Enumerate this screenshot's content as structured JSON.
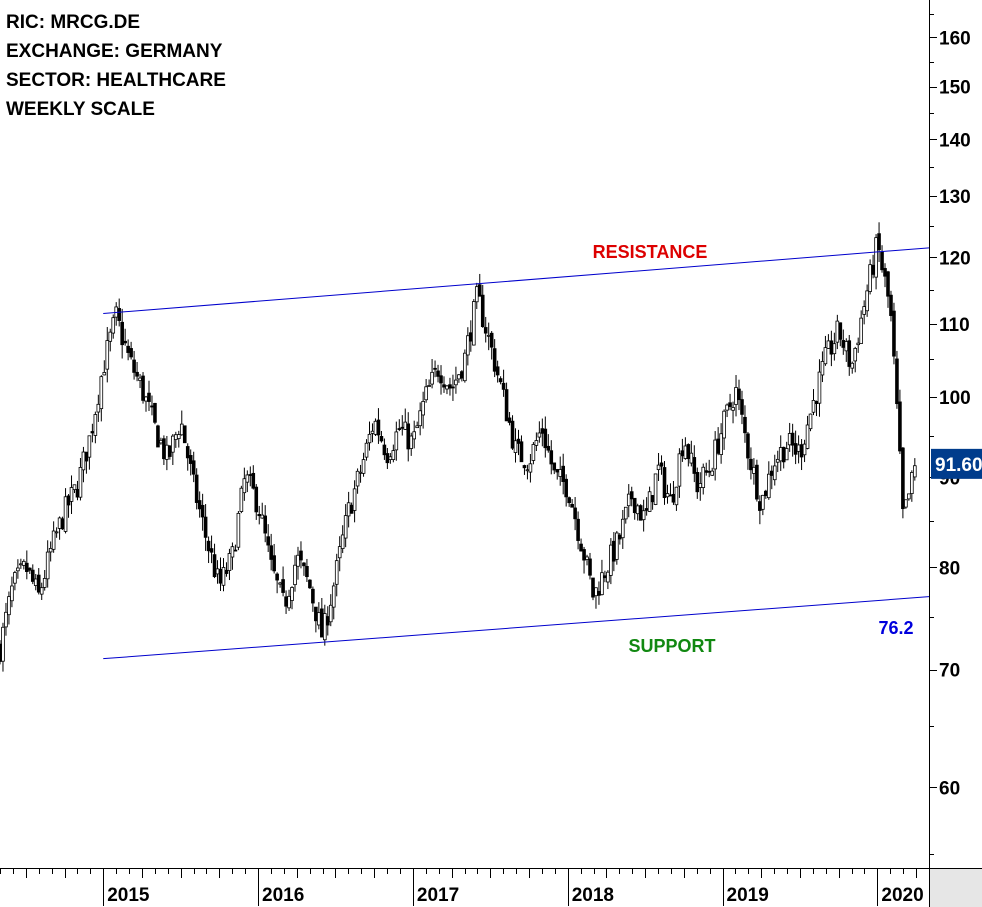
{
  "header": {
    "ric": "RIC: MRCG.DE",
    "exchange": "EXCHANGE: GERMANY",
    "sector": "SECTOR: HEALTHCARE",
    "scale": "WEEKLY SCALE"
  },
  "colors": {
    "trendline": "#0000cc",
    "resistance_label": "#dd0000",
    "support_label": "#118811",
    "low_label": "#0000dd",
    "last_price_badge": "#003c8c",
    "candles": "#000000",
    "year_axis_bg": "#e6e6e6"
  },
  "chart_data": {
    "type": "candlestick",
    "scale": "log",
    "ylim": [
      54,
      168
    ],
    "yticks": [
      60,
      70,
      80,
      90,
      100,
      110,
      120,
      130,
      140,
      150,
      160
    ],
    "xlim": [
      "2014-05",
      "2020-05"
    ],
    "x_tick_labels": [
      "2015",
      "2016",
      "2017",
      "2018",
      "2019",
      "2020"
    ],
    "last_price": "91.60",
    "annotations": {
      "resistance": "RESISTANCE",
      "support": "SUPPORT",
      "low_value": "76.2"
    },
    "trendlines": [
      {
        "name": "resistance",
        "from": {
          "x": "2015-01",
          "y": 111.5
        },
        "to": {
          "x": "2020-05",
          "y": 121.5
        }
      },
      {
        "name": "support",
        "from": {
          "x": "2015-01",
          "y": 71.0
        },
        "to": {
          "x": "2020-05",
          "y": 77.0
        }
      }
    ],
    "series": [
      {
        "values": [
          [
            "2014-05",
            72
          ],
          [
            "2014-06",
            78
          ],
          [
            "2014-07",
            80
          ],
          [
            "2014-08",
            77
          ],
          [
            "2014-09",
            82
          ],
          [
            "2014-10",
            86
          ],
          [
            "2014-11",
            89
          ],
          [
            "2014-12",
            95
          ],
          [
            "2015-01",
            104
          ],
          [
            "2015-02",
            111
          ],
          [
            "2015-03",
            105
          ],
          [
            "2015-04",
            101
          ],
          [
            "2015-05",
            96
          ],
          [
            "2015-06",
            92
          ],
          [
            "2015-07",
            97
          ],
          [
            "2015-08",
            89
          ],
          [
            "2015-09",
            83
          ],
          [
            "2015-10",
            78
          ],
          [
            "2015-11",
            81
          ],
          [
            "2015-12",
            90
          ],
          [
            "2016-01",
            87
          ],
          [
            "2016-02",
            80
          ],
          [
            "2016-03",
            76
          ],
          [
            "2016-04",
            81
          ],
          [
            "2016-05",
            78
          ],
          [
            "2016-06",
            73
          ],
          [
            "2016-07",
            79
          ],
          [
            "2016-08",
            86
          ],
          [
            "2016-09",
            91
          ],
          [
            "2016-10",
            97
          ],
          [
            "2016-11",
            93
          ],
          [
            "2016-12",
            96
          ],
          [
            "2017-01",
            94
          ],
          [
            "2017-02",
            100
          ],
          [
            "2017-03",
            104
          ],
          [
            "2017-04",
            101
          ],
          [
            "2017-05",
            105
          ],
          [
            "2017-06",
            114
          ],
          [
            "2017-07",
            107
          ],
          [
            "2017-08",
            100
          ],
          [
            "2017-09",
            93
          ],
          [
            "2017-10",
            92
          ],
          [
            "2017-11",
            96
          ],
          [
            "2017-12",
            90
          ],
          [
            "2018-01",
            89
          ],
          [
            "2018-02",
            83
          ],
          [
            "2018-03",
            77
          ],
          [
            "2018-04",
            80
          ],
          [
            "2018-05",
            83
          ],
          [
            "2018-06",
            88
          ],
          [
            "2018-07",
            85
          ],
          [
            "2018-08",
            91
          ],
          [
            "2018-09",
            87
          ],
          [
            "2018-10",
            95
          ],
          [
            "2018-11",
            89
          ],
          [
            "2018-12",
            91
          ],
          [
            "2019-01",
            96
          ],
          [
            "2019-02",
            101
          ],
          [
            "2019-03",
            93
          ],
          [
            "2019-04",
            87
          ],
          [
            "2019-05",
            92
          ],
          [
            "2019-06",
            94
          ],
          [
            "2019-07",
            93
          ],
          [
            "2019-08",
            99
          ],
          [
            "2019-09",
            105
          ],
          [
            "2019-10",
            109
          ],
          [
            "2019-11",
            104
          ],
          [
            "2019-12",
            113
          ],
          [
            "2020-01",
            122
          ],
          [
            "2020-02",
            112
          ],
          [
            "2020-03",
            85
          ],
          [
            "2020-04",
            91.6
          ]
        ]
      }
    ]
  }
}
